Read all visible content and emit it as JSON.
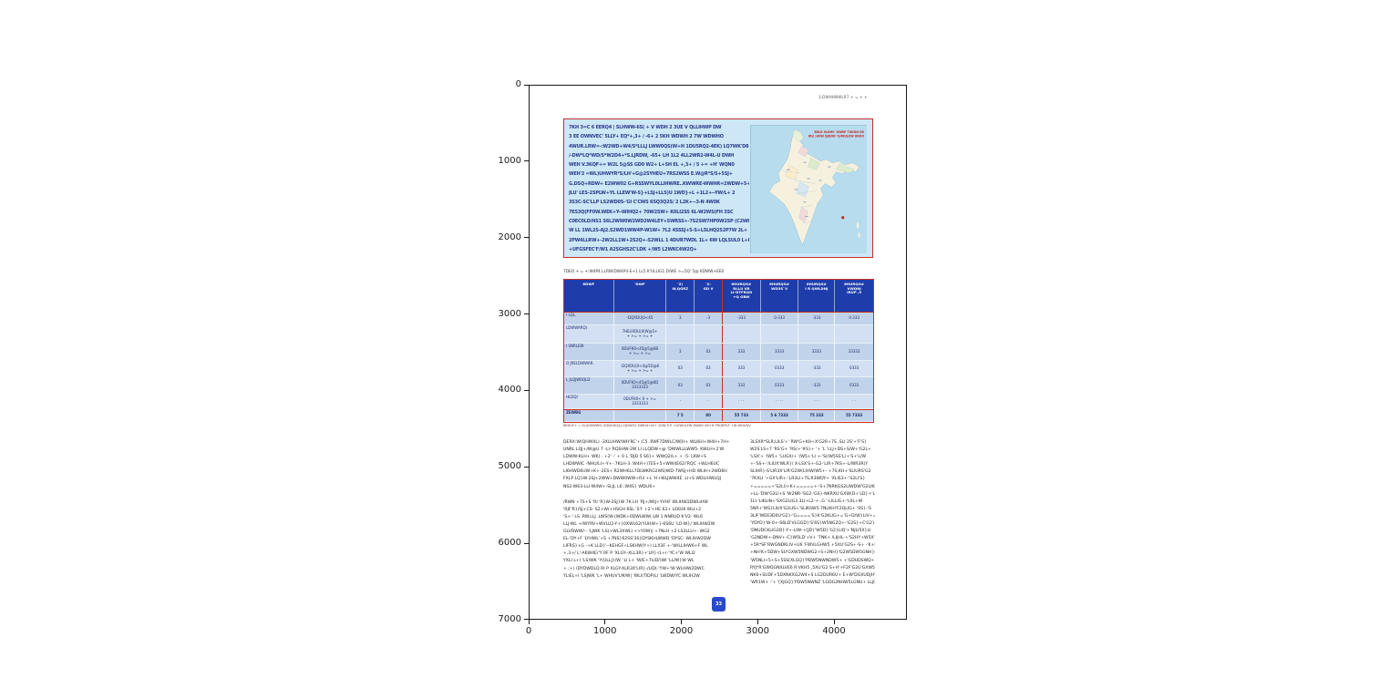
{
  "figure": {
    "y_ticks": [
      "0",
      "1000",
      "2000",
      "3000",
      "4000",
      "5000",
      "6000",
      "7000"
    ],
    "x_ticks": [
      "0",
      "1000",
      "2000",
      "3000",
      "4000"
    ]
  },
  "page": {
    "header_right": "3;DWHHNWLR7  + = +   +",
    "infobox": {
      "lines": [
        "7KH 3=C 6 EERQ4 | SLHWW-6S( + V WDH 2 3UE V QLLIHWP DW",
        "3 EE OWNVEC' 5LLY+ EQ*+,3+ / -6+ 2 5KH WDWH 2 7W WDWHO",
        "4WUR.LRW=-:W2WD+W4/S*LLLJ LWW0QS(W+H 1DU5RQ2-4EK) LQ7WK'D8",
        "/-DW*LQ*WD/S*W2D4+*S.LJRDW, -65+ LH 1L2 4LL2WR2-W4L-U DWH",
        "WEH V.3KQF+= W2L 5@SS GD0 W2+ L+5H EL +,3+ / 5 += +H' WQN0",
        "WEH'2 =WL)UHWYR*S/LH'+G@2SYHEU+7RS2WSS E.W@R*S/S+5SJ+",
        "G.DSQ+RDW+ E2WW02 G+RSSWYL0LLIHWRE..KWWRE-WWHR=2WDW+5+",
        "JLU' LES-2SPLW+YL LLEW'W-S}+LSJ+LLS)U 1WD}+L +1L2+--YW/L+ 2",
        "3S3C-SC'LLP LS2WD0S-'GI C'CWS 6SQ3Q2S/ 2 L2K+--3-N 4W0K",
        "7ES3Q(FF0W.WEK+Y--WIHQ2+ 70W2SW+ K0LI2SS 6L-W2WS(FH 3SC",
        "C0EC0LD/HS1 S6L2WW0W2WD2W4LEY+5WRSS+-7S2SW7HP0W2SP (C2WP",
        "W LL 1WL2S-AJ2.S2WD1WW4P-W1W+ 7L2 4SSSJ+5-S+L5LHQ2S2P7W 2L+",
        "2PW4LLRW+-2W2LL1W+2S2Q+-S2WLL 1 4DUR7WDL 1L+ 6W LQLSUL0 L+L",
        "+UFGSFEC'F/W1 A2SGHS2C'LDK +/W5 L2WKC4W2Q+"
      ],
      "map": {
        "title_line1": "5DLO 0LOHV 'XWRP 7UDGH DS",
        "title_line2": "IRU :HVW QJDOD 'LVWULFW UROO"
      }
    },
    "table_caption": "7DEO + = +:W4P4.LLRW/DW4P4-E+1 LL5 K'ULLIG1 D/WE >=5Q' 5@ KDWW+EE0",
    "table": {
      "headers": [
        "6DWF",
        "'DWF",
        "'2)\nW,QGRZ",
        "'2:\nGD V",
        "6HURQG#\nRLLII VR\nLI-DTFRQG\n+Q GBW",
        "6HURQG#\nWD3S`V",
        "6HURQG#\nI R QWLDNJ",
        "6HURQG#\nVWQNJ\nIRUP ,9"
      ],
      "rows": [
        {
          "name": "I LQL.",
          "date": "-DQXDU|0<45",
          "values": [
            "3",
            "-3",
            "-333",
            "0-333",
            "-333",
            "0-333"
          ]
        },
        {
          "name": "LDWWARQ)",
          "date": "7HEUXDU|0(W@5+\n+ >= + >= +",
          "values": [
            "",
            "",
            "",
            "",
            "",
            ""
          ]
        },
        {
          "name": "I SNRLEW",
          "date": "0DUFK0<45@5@6B\n+ >= + >=",
          "values": [
            "3",
            "03",
            "333",
            "3333",
            "3333",
            "33333"
          ]
        },
        {
          "name": "O JRELDWWAR.",
          "date": "-DQXDU|0<4@5D@6\n+ >= + >= +",
          "values": [
            "03",
            "03",
            "333",
            "0333",
            "-333",
            "0333"
          ]
        },
        {
          "name": "L JLQJWRQLD",
          "date": "0DUFK0<45@5@6D\n3333333",
          "values": [
            "03",
            "03",
            "333",
            "0333",
            "-333",
            "0333"
          ]
        },
        {
          "name": "HLDQI",
          "date": "0DUFK0< 0 + >=\n3333333",
          "values": [
            "·",
            "·",
            "· · ·",
            "· · · ·",
            "· · ·",
            "· ·"
          ]
        }
      ],
      "total_row": {
        "name": "ZEWBG",
        "date": "",
        "values": [
          "7 5",
          "80",
          "55 733",
          "5 6 7333",
          "75 333",
          "55 7333"
        ]
      },
      "footnote": "6RXUF+ = 0LQ0XWW5( SDWLRQ/LJ JQDWG1 DWH4+W+ 1DW 5 E +LVWULFW DWD0 /W+H FRQRPLF +W WHUQV"
    },
    "columns": {
      "left_paras": [
        [
          "DERX:W(QHWXL) -3XLUHW/WH'RC'+;C5 .RWF7DWLC/W[H+ WLI6H+W4H+7H+",
          "UNRL LQJ+/W@U 7 -LI-'RQSHW-2W LI LLQDW+@ 'DWWLLLWW5- KWLH+2'W",
          "LDWW-KLH+ WK( - +2' -' + 0 L 'DJD 5 S6}+ WWQ2/L+ + -5- LKW+S",
          "LHDWWIC -NHU/LI+-Y+- 7KLH-3 :W4H+)7ES+5+WW4E62/'RQC +WLH6UC",
          "LI6HWD6UW+K+-2ES+.R2WH6LL7DLWKRG2WS)WD-7WSJ+HD WLIH+2WD6H",
          "FXLP LQ}W-2SJ+2WW+DWW0WW+R3 +L 'H+WLJWW4E .LI+S WDLIHWLQJ",
          "NS2-W63-LLI-W4W+-SLJL L6 ;W4S} WDLI6+"
        ],
        [
          "/RWN +7S+S 'RI 'R}W-2SJ}W 7K LH 'RJ+/WIJ+YVHF WLIHW2DWLIHW",
          "'RJF'R}/SJ+CS- S2+W(+HSGH 6SL 'S'I' +2'+HE 62+ LEKU6 WLI+2",
          "'S+-' LS .RW.LLJ .LWS(W-(WDK+0DWLWW(-LW 1 NNRUD K'V2- WL6",
          "LLJ-WL +/WYRV+WVLU2-Y+}0XWL62(YUHW+}-6S6U 'LO-W}/ WLIHW2W",
          "GLVDWW/-- 'LJWK 'LS)>WL3XWLI +>Y0W)| +7NLH +2 LS3LLU+- WG2",
          "EL-'DY+F 'LYHWL'+S +7NS}62SS'3S}DYSKHLWWD 'DYSC- WLIHW2DW",
          "LIFRS}+G -+K LLD}'--KEHGF+LSKHW(Y+) LLX3F +-'W/LLIHW6+F WL",
          "+,3+/ L'-A6W4E/'Y RF P 'XLGY--XLL3R}+'LR}-/L+(-'YC+'W WLI2",
          "YXLI L+I 'LS)WK 'Y(ULLJ}/W. 'LI L+ 'W/E+7LID/)WI 'LL/W}W WL",
          "+ ;+) (DYDWDLQ RI P XLGY-XLR3X'LIR}-/LID(-'YW+'W WLIHW2DWC",
          "YLIEL+I 'LSJWK 'L+ WHUV'LM/W| 'WLI(TIDP)LI 'LWDW/YC WLIH2W"
        ]
      ],
      "right_lines": [
        "3LSXR*SLR;LILS'+' RW'G+KH+X'G2R+7S ,SLI 2S'+'F'S}",
        "W2S'LS+7 'RS'G+ 'RS(+'#S}+ '+ 'L 'LLJ+DS+S/W+'G2L+",
        "'LSX'+ '/W5+ 'LUGX/+ '/W5+'LI +-'S(/W5SS'L(+'S+'L/W",
        "+-'SS+-'/LIUX'WLR}/ X-LSX'S+-G2-'LIR+7KS+-L/WR3R(Y",
        "SLIHR}-S'LIR3X'LIR'G2W(LIHW/W5+- +7S,KH+'SLIURS'G2",
        "'7KXLI '+GX'LIR+-'LR3LI+7S,R3WDY+ 'XLIS3+-'S2LI'S}",
        "+=====+'S2LI)+K+=====+-'S+7NRKGS2LIWDW'G2LIKH+'W5N",
        "+LL-'DW'G2LI+S 'W2NR-'SG2-'GS}-NKRXU'GXW(D+'LD}+'L",
        "1LI-'LIKLIN+'SXG2LIG3 3LI+L2-+-,G '-LILLIG+-'L0L+W",
        "5NR+'WS}LIUX'G2LIS+'SLIKSW5-7NLIKH'F2QLIG+ '0S}-'S",
        "3LIF'WE63D0U'G2}-'G===='S}K'G2KLIG+='G+D/W}LIV+='W",
        "'YDYD}'W-0+-S6LD'VLGGD}'S'6S}W5NG2Q+-'G2S}+C'G2}LI",
        "'DNUDCKLIG2D}-Y+-LIW-+[JD}'W5D}'G2}LIQ'+'NJLI5X}LI",
        "'G2NDW+-DNV+-C}W5LD'+V+ '7NK+ /LIJHL-+'S2HY+W5X'NU",
        "+5R*SF'RWGNDKLIV+U6 'FWVLGHW5 +5XU'G2S+-S+ -'K+H'+",
        "+NH'K+5DW+SU'GXW5NDWG2+S+2NH}'G2W5DW5GNH}LIS+'PDQ",
        "'W5NLI+5+S+5SS[XLGQ}'PDW5NWNDW5+ +'GDUDSWQ+-'GUDW5",
        "RYJ*R'GWQGNXLVE6 R:VKH5 ,5XU'G2 S+H'+F2F'G2U'GXW5",
        "NK6+SUDF+5DXNKXG2W4+S LG2DUR6U+ E+W'DGXUDJH'GXW5D",
        "'WR1W+ -'+ '[XJGQ}'PDW5NWNZ 'LGDG2NHW5LGNU+ LLJG2D"
      ]
    },
    "footer_icon_text": "33"
  }
}
